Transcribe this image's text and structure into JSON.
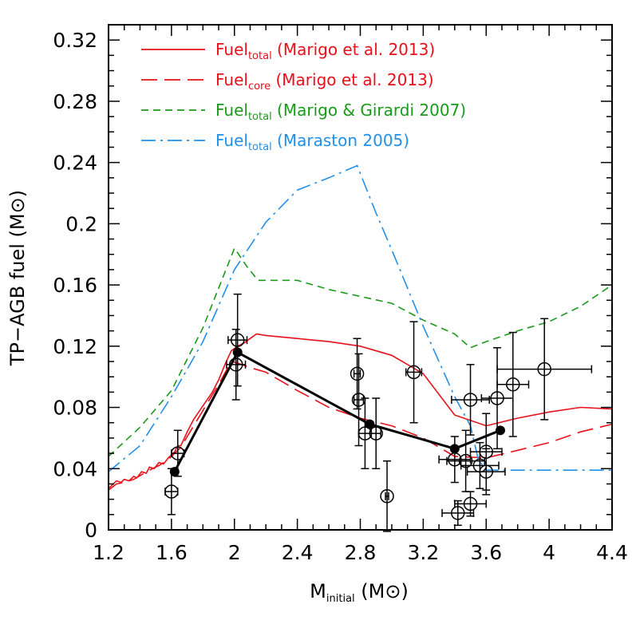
{
  "chart_data": {
    "type": "line",
    "xlabel": {
      "main": "M",
      "sub": "initial",
      "unit": " (M",
      "sun": "⊙",
      "close": ")"
    },
    "ylabel": {
      "main": "TP−AGB fuel (M",
      "sun": "⊙",
      "close": ")"
    },
    "xlim": [
      1.2,
      4.4
    ],
    "ylim": [
      0,
      0.33
    ],
    "x_ticks": [
      "1.2",
      "1.6",
      "2",
      "2.4",
      "2.8",
      "3.2",
      "3.6",
      "4",
      "4.4"
    ],
    "y_ticks": [
      "0",
      "0.04",
      "0.08",
      "0.12",
      "0.16",
      "0.2",
      "0.24",
      "0.28",
      "0.32"
    ],
    "legend": [
      {
        "base": "Fuel",
        "sub": "total",
        "ref": " (Marigo et al. 2013)",
        "color": "#e8101a",
        "style": "solid"
      },
      {
        "base": "Fuel",
        "sub": "core",
        "ref": " (Marigo et al. 2013)",
        "color": "#e8101a",
        "style": "longdash"
      },
      {
        "base": "Fuel",
        "sub": "total",
        "ref": " (Marigo & Girardi 2007)",
        "color": "#1a9a1a",
        "style": "dash"
      },
      {
        "base": "Fuel",
        "sub": "total",
        "ref": " (Maraston 2005)",
        "color": "#2090e8",
        "style": "dashdot"
      }
    ],
    "series": [
      {
        "color": "#e8101a",
        "style": "solid",
        "x": [
          1.2,
          1.22,
          1.25,
          1.28,
          1.3,
          1.33,
          1.36,
          1.38,
          1.41,
          1.44,
          1.46,
          1.49,
          1.52,
          1.55,
          1.58,
          1.62,
          1.64,
          1.66,
          1.7,
          1.74,
          1.8,
          1.86,
          1.9,
          1.94,
          1.98,
          2.02,
          2.06,
          2.1,
          2.14,
          2.2,
          2.4,
          2.6,
          2.8,
          3.0,
          3.2,
          3.4,
          3.6,
          3.8,
          4.0,
          4.2,
          4.4
        ],
        "y": [
          0.027,
          0.029,
          0.032,
          0.031,
          0.033,
          0.032,
          0.035,
          0.034,
          0.038,
          0.037,
          0.041,
          0.04,
          0.044,
          0.043,
          0.047,
          0.051,
          0.055,
          0.055,
          0.064,
          0.072,
          0.081,
          0.09,
          0.098,
          0.108,
          0.117,
          0.12,
          0.122,
          0.125,
          0.128,
          0.127,
          0.125,
          0.123,
          0.12,
          0.114,
          0.102,
          0.075,
          0.068,
          0.073,
          0.077,
          0.08,
          0.079
        ]
      },
      {
        "color": "#e8101a",
        "style": "longdash",
        "x": [
          1.2,
          1.25,
          1.3,
          1.36,
          1.41,
          1.46,
          1.52,
          1.58,
          1.62,
          1.66,
          1.7,
          1.8,
          1.9,
          1.98,
          2.02,
          2.1,
          2.2,
          2.4,
          2.6,
          2.8,
          3.0,
          3.2,
          3.4,
          3.6,
          3.8,
          4.0,
          4.2,
          4.4
        ],
        "y": [
          0.026,
          0.03,
          0.031,
          0.033,
          0.036,
          0.039,
          0.042,
          0.046,
          0.05,
          0.054,
          0.061,
          0.078,
          0.095,
          0.11,
          0.109,
          0.106,
          0.103,
          0.091,
          0.08,
          0.073,
          0.068,
          0.06,
          0.048,
          0.047,
          0.052,
          0.057,
          0.064,
          0.069
        ]
      },
      {
        "color": "#1a9a1a",
        "style": "dash",
        "x": [
          1.2,
          1.4,
          1.6,
          1.8,
          2.0,
          2.08,
          2.15,
          2.4,
          2.6,
          3.0,
          3.2,
          3.4,
          3.5,
          3.6,
          3.8,
          4.0,
          4.2,
          4.4
        ],
        "y": [
          0.048,
          0.067,
          0.091,
          0.132,
          0.184,
          0.172,
          0.163,
          0.163,
          0.157,
          0.148,
          0.137,
          0.128,
          0.119,
          0.123,
          0.13,
          0.136,
          0.146,
          0.16
        ]
      },
      {
        "color": "#2090e8",
        "style": "dashdot",
        "x": [
          1.2,
          1.4,
          1.6,
          1.8,
          2.0,
          2.2,
          2.4,
          2.6,
          2.78,
          2.9,
          3.0,
          3.2,
          3.4,
          3.5,
          3.55,
          3.6,
          3.8,
          4.0,
          4.2,
          4.4
        ],
        "y": [
          0.038,
          0.055,
          0.087,
          0.123,
          0.17,
          0.201,
          0.222,
          0.23,
          0.238,
          0.207,
          0.183,
          0.133,
          0.087,
          0.068,
          0.046,
          0.039,
          0.039,
          0.039,
          0.039,
          0.039
        ]
      },
      {
        "color": "#000000",
        "style": "thick",
        "x": [
          1.62,
          2.02,
          2.86,
          3.4,
          3.69
        ],
        "y": [
          0.038,
          0.116,
          0.069,
          0.053,
          0.065
        ]
      }
    ],
    "open_points": [
      {
        "x": 1.6,
        "y": 0.025,
        "xerr": 0.04,
        "yerr": 0.015
      },
      {
        "x": 1.64,
        "y": 0.05,
        "xerr": 0.04,
        "yerr": 0.015
      },
      {
        "x": 2.01,
        "y": 0.108,
        "xerr": 0.06,
        "yerr": 0.023
      },
      {
        "x": 2.02,
        "y": 0.124,
        "xerr": 0.06,
        "yerr": 0.03
      },
      {
        "x": 2.78,
        "y": 0.102,
        "xerr": 0.02,
        "yerr": 0.023
      },
      {
        "x": 2.79,
        "y": 0.085,
        "xerr": 0.03,
        "yerr": 0.03
      },
      {
        "x": 2.83,
        "y": 0.063,
        "xerr": 0.04,
        "yerr": 0.023
      },
      {
        "x": 2.9,
        "y": 0.063,
        "xerr": 0.03,
        "yerr": 0.023
      },
      {
        "x": 2.97,
        "y": 0.022,
        "xerr": 0.01,
        "yerr": 0.023
      },
      {
        "x": 3.14,
        "y": 0.103,
        "xerr": 0.05,
        "yerr": 0.033
      },
      {
        "x": 3.4,
        "y": 0.046,
        "xerr": 0.1,
        "yerr": 0.015
      },
      {
        "x": 3.42,
        "y": 0.011,
        "xerr": 0.1,
        "yerr": 0.008
      },
      {
        "x": 3.47,
        "y": 0.045,
        "xerr": 0.12,
        "yerr": 0.02
      },
      {
        "x": 3.5,
        "y": 0.085,
        "xerr": 0.12,
        "yerr": 0.023
      },
      {
        "x": 3.5,
        "y": 0.017,
        "xerr": 0.1,
        "yerr": 0.008
      },
      {
        "x": 3.56,
        "y": 0.042,
        "xerr": 0.12,
        "yerr": 0.015
      },
      {
        "x": 3.6,
        "y": 0.051,
        "xerr": 0.1,
        "yerr": 0.025
      },
      {
        "x": 3.6,
        "y": 0.038,
        "xerr": 0.12,
        "yerr": 0.015
      },
      {
        "x": 3.67,
        "y": 0.086,
        "xerr": 0.1,
        "yerr": 0.033
      },
      {
        "x": 3.77,
        "y": 0.095,
        "xerr": 0.1,
        "yerr": 0.034
      },
      {
        "x": 3.97,
        "y": 0.105,
        "xerr": 0.3,
        "yerr": 0.033
      }
    ]
  }
}
